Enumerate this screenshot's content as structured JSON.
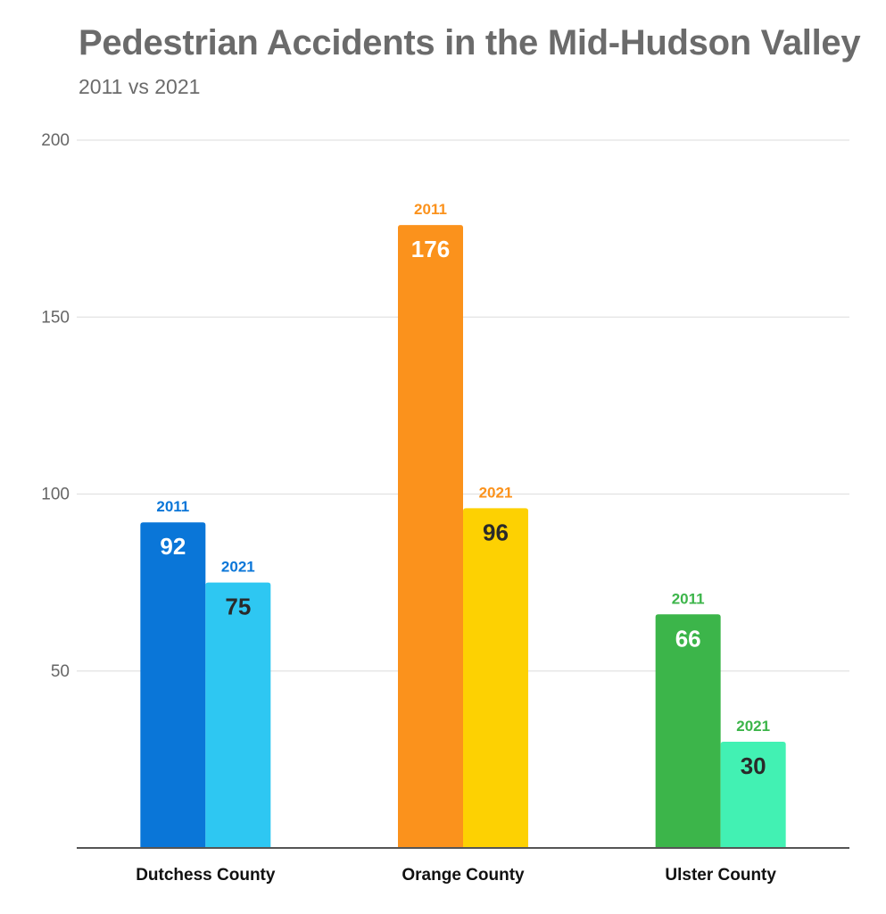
{
  "chart_data": {
    "type": "bar",
    "title": "Pedestrian Accidents in the Mid-Hudson Valley",
    "subtitle": "2011 vs 2021",
    "categories": [
      "Dutchess County",
      "Orange County",
      "Ulster County"
    ],
    "series": [
      {
        "name": "2011",
        "values": [
          92,
          176,
          66
        ]
      },
      {
        "name": "2021",
        "values": [
          75,
          96,
          30
        ]
      }
    ],
    "bar_colors": [
      [
        "#0a76d8",
        "#2ec7f2"
      ],
      [
        "#fb921c",
        "#fdd102"
      ],
      [
        "#3cb54a",
        "#42f1b3"
      ]
    ],
    "year_label_colors": [
      "#0a76d8",
      "#fb921c",
      "#3cb54a"
    ],
    "value_label_colors": [
      "#ffffff",
      "#2a2a2a"
    ],
    "ylim": [
      0,
      200
    ],
    "yticks": [
      50,
      100,
      150,
      200
    ],
    "grid": true,
    "xlabel": "",
    "ylabel": ""
  }
}
